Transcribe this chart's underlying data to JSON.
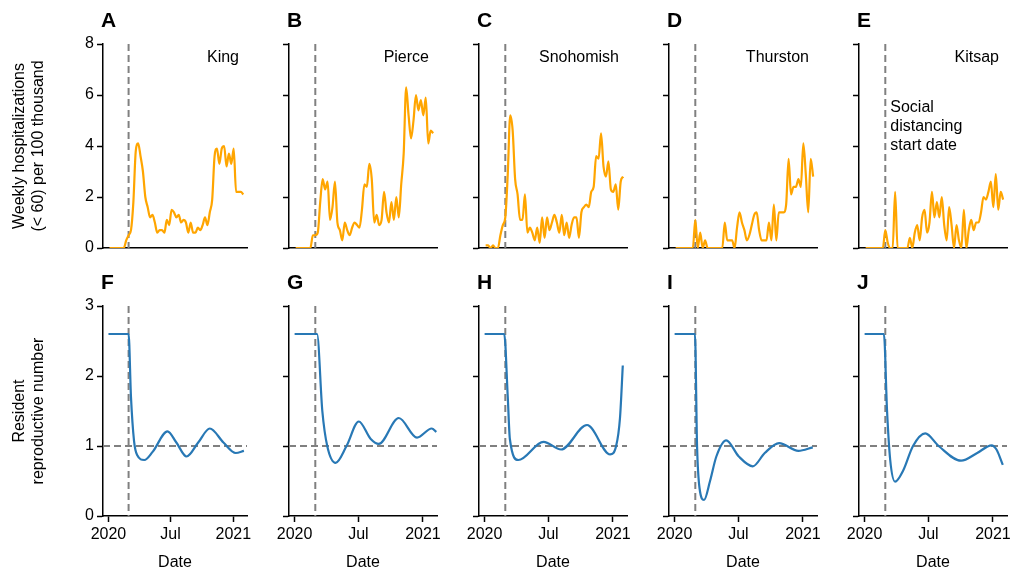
{
  "chart_data": [
    {
      "type": "line",
      "title": "A",
      "annotations": [
        "King"
      ],
      "ylabel": "Weekly hospitalizations (< 60) per 100 thousand",
      "tick_labels": "y",
      "grid": false,
      "color": "#ffa500",
      "xlim": [
        "2019-12-16",
        "2021-02-10"
      ],
      "ylim": [
        0,
        8
      ],
      "yticks": [
        0,
        2,
        4,
        6,
        8
      ],
      "ref_lines": [
        {
          "axis": "x",
          "value": "2020-02-29",
          "color": "#808080",
          "line_style": "dashed"
        }
      ],
      "x": [
        "2020-01-04",
        "2020-01-11",
        "2020-01-18",
        "2020-01-25",
        "2020-02-01",
        "2020-02-08",
        "2020-02-15",
        "2020-02-22",
        "2020-02-29",
        "2020-03-07",
        "2020-03-14",
        "2020-03-21",
        "2020-03-28",
        "2020-04-04",
        "2020-04-11",
        "2020-04-18",
        "2020-04-25",
        "2020-05-02",
        "2020-05-09",
        "2020-05-16",
        "2020-05-23",
        "2020-05-30",
        "2020-06-06",
        "2020-06-13",
        "2020-06-20",
        "2020-06-27",
        "2020-07-04",
        "2020-07-11",
        "2020-07-18",
        "2020-07-25",
        "2020-08-01",
        "2020-08-08",
        "2020-08-15",
        "2020-08-22",
        "2020-08-29",
        "2020-09-05",
        "2020-09-12",
        "2020-09-19",
        "2020-09-26",
        "2020-10-03",
        "2020-10-10",
        "2020-10-17",
        "2020-10-24",
        "2020-10-31",
        "2020-11-07",
        "2020-11-14",
        "2020-11-21",
        "2020-11-28",
        "2020-12-05",
        "2020-12-12",
        "2020-12-19",
        "2020-12-26",
        "2021-01-02",
        "2021-01-09",
        "2021-01-16",
        "2021-01-23",
        "2021-01-30"
      ],
      "values": [
        0,
        0,
        0,
        0,
        0,
        0,
        0,
        0.3,
        0.5,
        0.7,
        1.8,
        3.8,
        4.1,
        3.6,
        3.0,
        2.0,
        1.6,
        1.2,
        1.3,
        1.0,
        0.6,
        0.7,
        0.7,
        0.6,
        1.1,
        0.9,
        1.5,
        1.4,
        1.2,
        1.3,
        1.0,
        1.1,
        1.0,
        0.6,
        1.0,
        0.6,
        0.6,
        0.8,
        0.7,
        0.9,
        1.2,
        0.9,
        1.4,
        1.9,
        3.6,
        3.9,
        3.3,
        3.9,
        4.0,
        3.2,
        3.7,
        3.3,
        3.9,
        2.2,
        2.2,
        2.2,
        2.1
      ]
    },
    {
      "type": "line",
      "title": "B",
      "annotations": [
        "Pierce"
      ],
      "tick_labels": false,
      "grid": false,
      "color": "#ffa500",
      "xlim": [
        "2019-12-16",
        "2021-02-10"
      ],
      "ylim": [
        0,
        8
      ],
      "yticks": [
        0,
        2,
        4,
        6,
        8
      ],
      "ref_lines": [
        {
          "axis": "x",
          "value": "2020-02-29",
          "color": "#808080",
          "line_style": "dashed"
        }
      ],
      "x": [
        "2020-01-04",
        "2020-01-11",
        "2020-01-18",
        "2020-01-25",
        "2020-02-01",
        "2020-02-08",
        "2020-02-15",
        "2020-02-22",
        "2020-02-29",
        "2020-03-07",
        "2020-03-14",
        "2020-03-21",
        "2020-03-28",
        "2020-04-04",
        "2020-04-11",
        "2020-04-18",
        "2020-04-25",
        "2020-05-02",
        "2020-05-09",
        "2020-05-16",
        "2020-05-23",
        "2020-05-30",
        "2020-06-06",
        "2020-06-13",
        "2020-06-20",
        "2020-06-27",
        "2020-07-04",
        "2020-07-11",
        "2020-07-18",
        "2020-07-25",
        "2020-08-01",
        "2020-08-08",
        "2020-08-15",
        "2020-08-22",
        "2020-08-29",
        "2020-09-05",
        "2020-09-12",
        "2020-09-19",
        "2020-09-26",
        "2020-10-03",
        "2020-10-10",
        "2020-10-17",
        "2020-10-24",
        "2020-10-31",
        "2020-11-07",
        "2020-11-14",
        "2020-11-21",
        "2020-11-28",
        "2020-12-05",
        "2020-12-12",
        "2020-12-19",
        "2020-12-26",
        "2021-01-02",
        "2021-01-09",
        "2021-01-16",
        "2021-01-23",
        "2021-01-30"
      ],
      "values": [
        0,
        0,
        0,
        0,
        0,
        0,
        0,
        0.5,
        0.5,
        0.6,
        1.8,
        2.7,
        2.3,
        2.6,
        1.1,
        1.6,
        2.6,
        1.0,
        0.7,
        0.3,
        1.0,
        0.7,
        0.5,
        0.8,
        1.0,
        0.9,
        0.8,
        1.5,
        2.5,
        2.4,
        3.3,
        2.7,
        1.0,
        1.3,
        0.9,
        1.1,
        2.2,
        1.4,
        1.0,
        1.8,
        1.1,
        2.0,
        1.2,
        2.5,
        3.7,
        6.3,
        5.2,
        4.3,
        5.0,
        6.0,
        5.4,
        5.8,
        5.2,
        5.9,
        4.1,
        4.6,
        4.5
      ]
    },
    {
      "type": "line",
      "title": "C",
      "annotations": [
        "Snohomish"
      ],
      "tick_labels": false,
      "grid": false,
      "color": "#ffa500",
      "xlim": [
        "2019-12-16",
        "2021-02-10"
      ],
      "ylim": [
        0,
        8
      ],
      "yticks": [
        0,
        2,
        4,
        6,
        8
      ],
      "ref_lines": [
        {
          "axis": "x",
          "value": "2020-02-29",
          "color": "#808080",
          "line_style": "dashed"
        }
      ],
      "x": [
        "2020-01-04",
        "2020-01-11",
        "2020-01-18",
        "2020-01-25",
        "2020-02-01",
        "2020-02-08",
        "2020-02-15",
        "2020-02-22",
        "2020-02-29",
        "2020-03-07",
        "2020-03-14",
        "2020-03-21",
        "2020-03-28",
        "2020-04-04",
        "2020-04-11",
        "2020-04-18",
        "2020-04-25",
        "2020-05-02",
        "2020-05-09",
        "2020-05-16",
        "2020-05-23",
        "2020-05-30",
        "2020-06-06",
        "2020-06-13",
        "2020-06-20",
        "2020-06-27",
        "2020-07-04",
        "2020-07-11",
        "2020-07-18",
        "2020-07-25",
        "2020-08-01",
        "2020-08-08",
        "2020-08-15",
        "2020-08-22",
        "2020-08-29",
        "2020-09-05",
        "2020-09-12",
        "2020-09-19",
        "2020-09-26",
        "2020-10-03",
        "2020-10-10",
        "2020-10-17",
        "2020-10-24",
        "2020-10-31",
        "2020-11-07",
        "2020-11-14",
        "2020-11-21",
        "2020-11-28",
        "2020-12-05",
        "2020-12-12",
        "2020-12-19",
        "2020-12-26",
        "2021-01-02",
        "2021-01-09",
        "2021-01-16",
        "2021-01-23",
        "2021-01-30"
      ],
      "values": [
        0.1,
        0.1,
        0.0,
        0.1,
        0.0,
        0.0,
        0.5,
        0.9,
        1.2,
        2.9,
        5.2,
        4.6,
        2.7,
        2.1,
        1.1,
        1.1,
        2.1,
        0.6,
        0.8,
        0.6,
        0.3,
        0.8,
        0.2,
        1.2,
        0.4,
        1.2,
        0.7,
        1.0,
        1.3,
        1.0,
        0.6,
        1.3,
        0.5,
        1.0,
        0.4,
        0.9,
        1.2,
        1.2,
        0.4,
        1.4,
        1.6,
        1.7,
        1.6,
        2.2,
        2.4,
        3.6,
        3.5,
        4.5,
        3.2,
        2.8,
        3.4,
        2.3,
        2.2,
        2.5,
        1.5,
        2.6,
        2.8
      ]
    },
    {
      "type": "line",
      "title": "D",
      "annotations": [
        "Thurston"
      ],
      "tick_labels": false,
      "grid": false,
      "color": "#ffa500",
      "xlim": [
        "2019-12-16",
        "2021-02-10"
      ],
      "ylim": [
        0,
        8
      ],
      "yticks": [
        0,
        2,
        4,
        6,
        8
      ],
      "ref_lines": [
        {
          "axis": "x",
          "value": "2020-02-29",
          "color": "#808080",
          "line_style": "dashed"
        }
      ],
      "x": [
        "2020-01-04",
        "2020-01-11",
        "2020-01-18",
        "2020-01-25",
        "2020-02-01",
        "2020-02-08",
        "2020-02-15",
        "2020-02-22",
        "2020-02-29",
        "2020-03-07",
        "2020-03-14",
        "2020-03-21",
        "2020-03-28",
        "2020-04-04",
        "2020-04-11",
        "2020-04-18",
        "2020-04-25",
        "2020-05-02",
        "2020-05-09",
        "2020-05-16",
        "2020-05-23",
        "2020-05-30",
        "2020-06-06",
        "2020-06-13",
        "2020-06-20",
        "2020-06-27",
        "2020-07-04",
        "2020-07-11",
        "2020-07-18",
        "2020-07-25",
        "2020-08-01",
        "2020-08-08",
        "2020-08-15",
        "2020-08-22",
        "2020-08-29",
        "2020-09-05",
        "2020-09-12",
        "2020-09-19",
        "2020-09-26",
        "2020-10-03",
        "2020-10-10",
        "2020-10-17",
        "2020-10-24",
        "2020-10-31",
        "2020-11-07",
        "2020-11-14",
        "2020-11-21",
        "2020-11-28",
        "2020-12-05",
        "2020-12-12",
        "2020-12-19",
        "2020-12-26",
        "2021-01-02",
        "2021-01-09",
        "2021-01-16",
        "2021-01-23",
        "2021-01-30"
      ],
      "values": [
        0,
        0,
        0,
        0,
        0,
        0,
        0,
        0,
        1.1,
        0,
        0.6,
        0,
        0.3,
        0,
        0,
        0,
        0,
        0,
        0,
        0,
        1.0,
        0.3,
        0.3,
        0.3,
        0,
        0.8,
        1.4,
        1.0,
        0.7,
        0.3,
        0.5,
        0.9,
        1.3,
        1.4,
        0.7,
        0.3,
        0.3,
        0.3,
        1.0,
        0.3,
        1.7,
        0.3,
        1.4,
        1.4,
        1.4,
        1.7,
        3.5,
        2.1,
        2.4,
        2.4,
        2.7,
        2.4,
        4.1,
        2.9,
        1.4,
        3.5,
        2.8
      ]
    },
    {
      "type": "line",
      "title": "E",
      "annotations": [
        "Kitsap"
      ],
      "tick_labels": false,
      "grid": false,
      "color": "#ffa500",
      "xlim": [
        "2019-12-16",
        "2021-02-10"
      ],
      "ylim": [
        0,
        8
      ],
      "yticks": [
        0,
        2,
        4,
        6,
        8
      ],
      "ref_lines": [
        {
          "axis": "x",
          "value": "2020-02-29",
          "label": "Social distancing start date",
          "color": "#808080",
          "line_style": "dashed"
        }
      ],
      "x": [
        "2020-01-04",
        "2020-01-11",
        "2020-01-18",
        "2020-01-25",
        "2020-02-01",
        "2020-02-08",
        "2020-02-15",
        "2020-02-22",
        "2020-02-29",
        "2020-03-07",
        "2020-03-14",
        "2020-03-21",
        "2020-03-28",
        "2020-04-04",
        "2020-04-11",
        "2020-04-18",
        "2020-04-25",
        "2020-05-02",
        "2020-05-09",
        "2020-05-16",
        "2020-05-23",
        "2020-05-30",
        "2020-06-06",
        "2020-06-13",
        "2020-06-20",
        "2020-06-27",
        "2020-07-04",
        "2020-07-11",
        "2020-07-18",
        "2020-07-25",
        "2020-08-01",
        "2020-08-08",
        "2020-08-15",
        "2020-08-22",
        "2020-08-29",
        "2020-09-05",
        "2020-09-12",
        "2020-09-19",
        "2020-09-26",
        "2020-10-03",
        "2020-10-10",
        "2020-10-17",
        "2020-10-24",
        "2020-10-31",
        "2020-11-07",
        "2020-11-14",
        "2020-11-21",
        "2020-11-28",
        "2020-12-05",
        "2020-12-12",
        "2020-12-19",
        "2020-12-26",
        "2021-01-02",
        "2021-01-09",
        "2021-01-16",
        "2021-01-23",
        "2021-01-30"
      ],
      "values": [
        0,
        0,
        0,
        0,
        0,
        0,
        0,
        0,
        0.7,
        0.2,
        0,
        0,
        2.2,
        0,
        0,
        0,
        0,
        0,
        0.4,
        0,
        0.6,
        0.9,
        0.3,
        1.2,
        1.5,
        0.6,
        1.0,
        2.2,
        1.2,
        1.8,
        1.2,
        2.0,
        0.9,
        0.3,
        1.6,
        0.9,
        0,
        0.9,
        0.3,
        0,
        1.5,
        0,
        0.7,
        1.1,
        0.7,
        1.0,
        1.0,
        1.4,
        2.0,
        1.9,
        2.2,
        2.6,
        1.6,
        2.9,
        1.5,
        2.2,
        1.9
      ]
    },
    {
      "type": "line",
      "title": "F",
      "xlabel": "Date",
      "ylabel": "Resident reproductive number",
      "grid": false,
      "color": "#2878b5",
      "xlim": [
        "2019-12-16",
        "2021-02-10"
      ],
      "xticks": [
        {
          "value": "2020-01-01",
          "label": "2020"
        },
        {
          "value": "2020-07-01",
          "label": "Jul"
        },
        {
          "value": "2021-01-01",
          "label": "2021"
        }
      ],
      "ylim": [
        0,
        3
      ],
      "yticks": [
        0,
        1,
        2,
        3
      ],
      "ref_lines": [
        {
          "axis": "x",
          "value": "2020-02-29",
          "color": "#808080",
          "line_style": "dashed"
        },
        {
          "axis": "y",
          "value": 1,
          "color": "#808080",
          "line_style": "dashed"
        }
      ],
      "x": [
        "2020-01-01",
        "2020-02-29",
        "2020-03-07",
        "2020-03-16",
        "2020-03-25",
        "2020-04-15",
        "2020-05-10",
        "2020-06-22",
        "2020-07-18",
        "2020-08-17",
        "2020-09-20",
        "2020-10-24",
        "2020-12-03",
        "2021-01-08",
        "2021-02-01"
      ],
      "values": [
        2.6,
        2.6,
        1.7,
        1.07,
        0.87,
        0.8,
        0.92,
        1.21,
        1.05,
        0.85,
        1.05,
        1.25,
        1.05,
        0.9,
        0.93
      ]
    },
    {
      "type": "line",
      "title": "G",
      "xlabel": "Date",
      "tick_labels": "x",
      "grid": false,
      "color": "#2878b5",
      "xlim": [
        "2019-12-16",
        "2021-02-10"
      ],
      "xticks": [
        {
          "value": "2020-01-01",
          "label": "2020"
        },
        {
          "value": "2020-07-01",
          "label": "Jul"
        },
        {
          "value": "2021-01-01",
          "label": "2021"
        }
      ],
      "ylim": [
        0,
        3
      ],
      "yticks": [
        0,
        1,
        2,
        3
      ],
      "ref_lines": [
        {
          "axis": "x",
          "value": "2020-02-29",
          "color": "#808080",
          "line_style": "dashed"
        },
        {
          "axis": "y",
          "value": 1,
          "color": "#808080",
          "line_style": "dashed"
        }
      ],
      "x": [
        "2020-01-01",
        "2020-03-05",
        "2020-03-20",
        "2020-04-03",
        "2020-04-27",
        "2020-05-28",
        "2020-07-02",
        "2020-08-05",
        "2020-08-28",
        "2020-10-24",
        "2020-12-15",
        "2021-01-26",
        "2021-02-08"
      ],
      "values": [
        2.6,
        2.6,
        1.5,
        1.0,
        0.76,
        1.0,
        1.35,
        1.1,
        1.03,
        1.4,
        1.12,
        1.25,
        1.2
      ]
    },
    {
      "type": "line",
      "title": "H",
      "xlabel": "Date",
      "tick_labels": "x",
      "grid": false,
      "color": "#2878b5",
      "xlim": [
        "2019-12-16",
        "2021-02-10"
      ],
      "xticks": [
        {
          "value": "2020-01-01",
          "label": "2020"
        },
        {
          "value": "2020-07-01",
          "label": "Jul"
        },
        {
          "value": "2021-01-01",
          "label": "2021"
        }
      ],
      "ylim": [
        0,
        3
      ],
      "yticks": [
        0,
        1,
        2,
        3
      ],
      "ref_lines": [
        {
          "axis": "x",
          "value": "2020-02-29",
          "color": "#808080",
          "line_style": "dashed"
        },
        {
          "axis": "y",
          "value": 1,
          "color": "#808080",
          "line_style": "dashed"
        }
      ],
      "x": [
        "2020-01-01",
        "2020-02-26",
        "2020-03-07",
        "2020-03-13",
        "2020-04-06",
        "2020-06-17",
        "2020-08-06",
        "2020-10-19",
        "2020-12-24",
        "2021-01-10",
        "2021-01-21",
        "2021-01-29"
      ],
      "values": [
        2.6,
        2.6,
        1.7,
        1.1,
        0.8,
        1.06,
        0.95,
        1.3,
        0.88,
        1.0,
        1.4,
        2.15
      ]
    },
    {
      "type": "line",
      "title": "I",
      "xlabel": "Date",
      "tick_labels": "x",
      "grid": false,
      "color": "#2878b5",
      "xlim": [
        "2019-12-16",
        "2021-02-10"
      ],
      "xticks": [
        {
          "value": "2020-01-01",
          "label": "2020"
        },
        {
          "value": "2020-07-01",
          "label": "Jul"
        },
        {
          "value": "2021-01-01",
          "label": "2021"
        }
      ],
      "ylim": [
        0,
        3
      ],
      "yticks": [
        0,
        1,
        2,
        3
      ],
      "ref_lines": [
        {
          "axis": "x",
          "value": "2020-02-29",
          "color": "#808080",
          "line_style": "dashed"
        },
        {
          "axis": "y",
          "value": 1,
          "color": "#808080",
          "line_style": "dashed"
        }
      ],
      "x": [
        "2020-01-01",
        "2020-02-28",
        "2020-03-05",
        "2020-03-12",
        "2020-03-25",
        "2020-04-11",
        "2020-04-29",
        "2020-05-27",
        "2020-07-02",
        "2020-08-11",
        "2020-09-14",
        "2020-10-25",
        "2020-12-19",
        "2021-01-29"
      ],
      "values": [
        2.6,
        2.6,
        1.0,
        0.4,
        0.23,
        0.5,
        0.85,
        1.08,
        0.85,
        0.71,
        0.9,
        1.04,
        0.93,
        0.98
      ]
    },
    {
      "type": "line",
      "title": "J",
      "xlabel": "Date",
      "tick_labels": "x",
      "grid": false,
      "color": "#2878b5",
      "xlim": [
        "2019-12-16",
        "2021-02-10"
      ],
      "xticks": [
        {
          "value": "2020-01-01",
          "label": "2020"
        },
        {
          "value": "2020-07-01",
          "label": "Jul"
        },
        {
          "value": "2021-01-01",
          "label": "2021"
        }
      ],
      "ylim": [
        0,
        3
      ],
      "yticks": [
        0,
        1,
        2,
        3
      ],
      "ref_lines": [
        {
          "axis": "x",
          "value": "2020-02-29",
          "color": "#808080",
          "line_style": "dashed"
        },
        {
          "axis": "y",
          "value": 1,
          "color": "#808080",
          "line_style": "dashed"
        }
      ],
      "x": [
        "2020-01-01",
        "2020-02-25",
        "2020-03-05",
        "2020-03-14",
        "2020-03-28",
        "2020-04-20",
        "2020-05-18",
        "2020-06-22",
        "2020-07-30",
        "2020-10-02",
        "2020-11-17",
        "2020-12-28",
        "2021-01-11",
        "2021-01-29"
      ],
      "values": [
        2.6,
        2.6,
        1.5,
        0.8,
        0.49,
        0.65,
        1.0,
        1.18,
        1.0,
        0.79,
        0.9,
        1.01,
        0.95,
        0.73
      ]
    }
  ]
}
